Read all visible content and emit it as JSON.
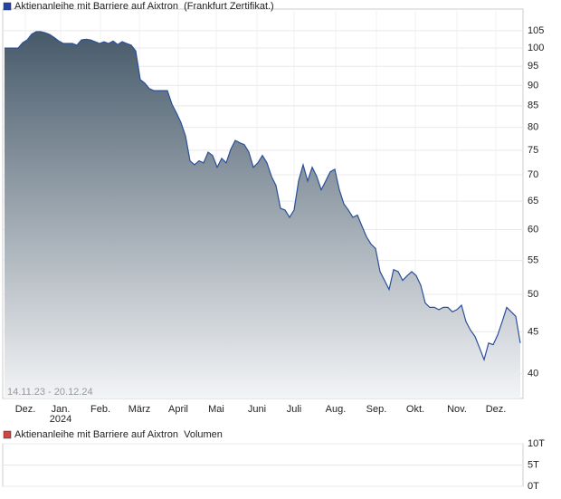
{
  "chart_data": [
    {
      "type": "area",
      "series": [
        {
          "name": "Aktienanleihe mit Barriere auf Aixtron  (Frankfurt Zertifikat.)",
          "color": "#2a4f9a",
          "legend_color": "#2244aa",
          "values": [
            100,
            100,
            100,
            100,
            101.5,
            102.3,
            104,
            104.7,
            104.7,
            104.4,
            103.9,
            103,
            102,
            101.3,
            101.3,
            101.3,
            100.8,
            102.3,
            102.5,
            102.3,
            101.8,
            101.3,
            101.8,
            101.3,
            102,
            101,
            101.8,
            101.3,
            100.8,
            99.2,
            91.5,
            90.6,
            89.2,
            88.7,
            88.7,
            88.7,
            88.7,
            85.4,
            83.3,
            81.1,
            78.1,
            72.8,
            72,
            72.8,
            72.4,
            74.6,
            73.9,
            71.5,
            73.3,
            72.4,
            75.2,
            77.1,
            76.6,
            76.2,
            74.6,
            71.5,
            72.4,
            73.9,
            72.4,
            69.7,
            67.9,
            63.7,
            63.4,
            62.1,
            63.4,
            68.8,
            72,
            68.8,
            71.5,
            69.7,
            67.1,
            68.8,
            70.6,
            71.1,
            67.1,
            64.5,
            63.4,
            62.1,
            62.5,
            60.6,
            58.8,
            57.6,
            56.9,
            53.3,
            52,
            50.7,
            53.6,
            53.3,
            52,
            52.7,
            53.3,
            52.7,
            51.3,
            48.8,
            48.2,
            48.2,
            47.9,
            48.2,
            48.2,
            47.6,
            47.9,
            48.5,
            46.3,
            45.2,
            44.4,
            43,
            41.6,
            43.6,
            43.4,
            44.6,
            46.3,
            48.2,
            47.6,
            47,
            43.6
          ]
        }
      ],
      "date_range": "14.11.23 - 20.12.24",
      "log_scale": true,
      "grid": true,
      "area_colors": [
        "#475a6a",
        "#f3f4f6"
      ],
      "xlim": [
        0,
        114
      ],
      "xticks": [
        {
          "value": 4.6,
          "label": "Dez."
        },
        {
          "value": 12.4,
          "label": "Jan."
        },
        {
          "value": 21.2,
          "label": "Feb."
        },
        {
          "value": 29.8,
          "label": "März"
        },
        {
          "value": 38.4,
          "label": "April"
        },
        {
          "value": 46.8,
          "label": "Mai"
        },
        {
          "value": 55.8,
          "label": "Juni"
        },
        {
          "value": 64,
          "label": "Juli"
        },
        {
          "value": 73.2,
          "label": "Aug."
        },
        {
          "value": 82.2,
          "label": "Sep."
        },
        {
          "value": 90.8,
          "label": "Okt."
        },
        {
          "value": 100,
          "label": "Nov."
        },
        {
          "value": 108.6,
          "label": "Dez."
        }
      ],
      "year_labels": [
        {
          "value": 12.4,
          "label": "2024"
        }
      ],
      "ylim": [
        37.3,
        111.6
      ],
      "yticks": [
        40,
        45,
        50,
        55,
        60,
        65,
        70,
        75,
        80,
        85,
        90,
        95,
        100,
        105
      ]
    },
    {
      "type": "bar",
      "series": [
        {
          "name": "Aktienanleihe mit Barriere auf Aixtron  Volumen",
          "legend_color": "#cc4444",
          "values": []
        }
      ],
      "grid": true,
      "ylim": [
        0,
        10000
      ],
      "yticks": [
        {
          "value": 0,
          "label": "0T"
        },
        {
          "value": 5000,
          "label": "5T"
        },
        {
          "value": 10000,
          "label": "10T"
        }
      ]
    }
  ]
}
